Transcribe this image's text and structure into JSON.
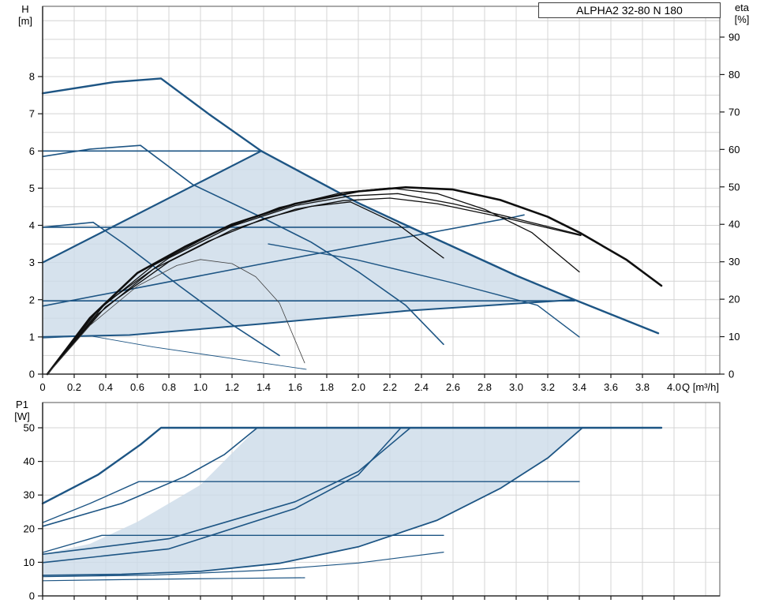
{
  "title_box": {
    "label": "ALPHA2 32-80 N 180"
  },
  "labels": {
    "head_1": "H",
    "head_2": "[m]",
    "eta_1": "eta",
    "eta_2": "[%]",
    "power_1": "P1",
    "power_2": "[W]",
    "flow_unit": "Q [m³/h]"
  },
  "colors": {
    "curve_blue": "#1d5584",
    "region_fill": "#ccdbe9",
    "eta_black": "#0f0f0f",
    "eta_faint": "#3f3f3f",
    "grid": "#d4d4d4",
    "frame": "#7d7d7d",
    "axis": "#1a1a1a"
  },
  "chart_data": [
    {
      "type": "line",
      "title": "ALPHA2 32-80 N 180",
      "xlabel": "Q [m³/h]",
      "ylabel_left": "H [m]",
      "ylabel_right": "eta [%]",
      "xlim": [
        0,
        4.3
      ],
      "ylim_left": [
        0,
        9.9
      ],
      "ylim_right": [
        0,
        94
      ],
      "grid": true,
      "x_ticks": [
        "0",
        "0.2",
        "0.4",
        "0.6",
        "0.8",
        "1.0",
        "1.2",
        "1.4",
        "1.6",
        "1.8",
        "2.0",
        "2.2",
        "2.4",
        "2.6",
        "2.8",
        "3.0",
        "3.2",
        "3.4",
        "3.6",
        "3.8",
        "4.0"
      ],
      "y_ticks_left": [
        "0",
        "1",
        "2",
        "3",
        "4",
        "5",
        "6",
        "7",
        "8"
      ],
      "y_ticks_right": [
        "0",
        "10",
        "20",
        "30",
        "40",
        "50",
        "60",
        "70",
        "80",
        "90"
      ],
      "region": [
        [
          0,
          3.0
        ],
        [
          1.385,
          6.0
        ],
        [
          2.0,
          4.6
        ],
        [
          2.33,
          3.95
        ],
        [
          3.0,
          2.65
        ],
        [
          3.37,
          2.0
        ],
        [
          2.3,
          1.7
        ],
        [
          1.385,
          1.35
        ],
        [
          0.55,
          1.05
        ],
        [
          0,
          1.0
        ]
      ],
      "series": [
        {
          "name": "max-speed-curve",
          "axis": "H",
          "color": "curve_blue",
          "width": 2.4,
          "points": [
            [
              0,
              7.55
            ],
            [
              0.45,
              7.85
            ],
            [
              0.75,
              7.95
            ],
            [
              1.05,
              7.0
            ],
            [
              1.385,
              6.0
            ],
            [
              2.0,
              4.6
            ],
            [
              2.33,
              3.95
            ],
            [
              3.0,
              2.65
            ],
            [
              3.37,
              2.0
            ],
            [
              3.9,
              1.1
            ]
          ]
        },
        {
          "name": "speed-2-curve",
          "axis": "H",
          "color": "curve_blue",
          "width": 1.6,
          "points": [
            [
              0,
              5.85
            ],
            [
              0.3,
              6.05
            ],
            [
              0.62,
              6.15
            ],
            [
              0.95,
              5.1
            ],
            [
              1.385,
              4.22
            ],
            [
              1.7,
              3.55
            ],
            [
              2.0,
              2.75
            ],
            [
              2.3,
              1.85
            ],
            [
              2.54,
              0.8
            ]
          ]
        },
        {
          "name": "speed-1-curve",
          "axis": "H",
          "color": "curve_blue",
          "width": 1.6,
          "points": [
            [
              0,
              3.95
            ],
            [
              0.32,
              4.08
            ],
            [
              0.52,
              3.49
            ],
            [
              0.87,
              2.36
            ],
            [
              1.2,
              1.33
            ],
            [
              1.5,
              0.5
            ]
          ]
        },
        {
          "name": "min-speed-curve",
          "axis": "H",
          "color": "curve_blue",
          "width": 0.9,
          "points": [
            [
              0,
              0.97
            ],
            [
              0.3,
              1.03
            ],
            [
              0.7,
              0.73
            ],
            [
              1.2,
              0.42
            ],
            [
              1.67,
              0.13
            ]
          ]
        },
        {
          "name": "const-pressure-6m",
          "axis": "H",
          "color": "curve_blue",
          "width": 1.6,
          "points": [
            [
              0,
              6.0
            ],
            [
              1.39,
              6.0
            ]
          ]
        },
        {
          "name": "const-pressure-4m",
          "axis": "H",
          "color": "curve_blue",
          "width": 1.6,
          "points": [
            [
              0,
              3.95
            ],
            [
              2.33,
              3.95
            ]
          ]
        },
        {
          "name": "const-pressure-2m",
          "axis": "H",
          "color": "curve_blue",
          "width": 1.6,
          "points": [
            [
              0,
              1.97
            ],
            [
              3.37,
              1.97
            ]
          ]
        },
        {
          "name": "prop-pressure-upper-limit",
          "axis": "H",
          "color": "curve_blue",
          "width": 2.2,
          "points": [
            [
              0,
              3.0
            ],
            [
              1.385,
              6.0
            ]
          ]
        },
        {
          "name": "prop-pressure-rising-curve",
          "axis": "H",
          "color": "curve_blue",
          "width": 1.6,
          "points": [
            [
              0,
              1.83
            ],
            [
              1.385,
              2.96
            ],
            [
              2.985,
              4.22
            ],
            [
              3.05,
              4.28
            ]
          ]
        },
        {
          "name": "operating-range-lower-limit",
          "axis": "H",
          "color": "curve_blue",
          "width": 2.0,
          "points": [
            [
              0,
              1.0
            ],
            [
              0.55,
              1.05
            ],
            [
              1.385,
              1.35
            ],
            [
              2.3,
              1.7
            ],
            [
              3.37,
              2.0
            ]
          ]
        },
        {
          "name": "prop-pressure-descending-curve",
          "axis": "H",
          "color": "curve_blue",
          "width": 1.4,
          "points": [
            [
              1.43,
              3.5
            ],
            [
              1.985,
              3.08
            ],
            [
              2.6,
              2.45
            ],
            [
              3.135,
              1.85
            ],
            [
              3.4,
              1.0
            ]
          ]
        },
        {
          "name": "eta-max-curve",
          "axis": "eta",
          "color": "eta_black",
          "width": 2.6,
          "points": [
            [
              0.03,
              0
            ],
            [
              0.3,
              15
            ],
            [
              0.6,
              27
            ],
            [
              0.9,
              34
            ],
            [
              1.2,
              40
            ],
            [
              1.6,
              45.5
            ],
            [
              2.0,
              48.8
            ],
            [
              2.3,
              49.9
            ],
            [
              2.6,
              49.3
            ],
            [
              2.9,
              46.5
            ],
            [
              3.2,
              42
            ],
            [
              3.41,
              37.6
            ],
            [
              3.7,
              30.5
            ],
            [
              3.92,
              23.6
            ]
          ]
        },
        {
          "name": "eta-curve-2",
          "axis": "eta",
          "color": "eta_black",
          "width": 1.3,
          "points": [
            [
              0.03,
              0
            ],
            [
              0.35,
              17
            ],
            [
              0.7,
              29
            ],
            [
              1.1,
              38
            ],
            [
              1.5,
              44.5
            ],
            [
              1.9,
              48.5
            ],
            [
              2.2,
              49.7
            ],
            [
              2.5,
              48.2
            ],
            [
              2.8,
              44
            ],
            [
              3.1,
              37.8
            ],
            [
              3.4,
              27.3
            ]
          ]
        },
        {
          "name": "eta-curve-3",
          "axis": "eta",
          "color": "eta_black",
          "width": 1.3,
          "points": [
            [
              0.03,
              0
            ],
            [
              0.4,
              19
            ],
            [
              0.8,
              31
            ],
            [
              1.2,
              39.5
            ],
            [
              1.6,
              45
            ],
            [
              1.95,
              47.6
            ],
            [
              2.25,
              48.2
            ],
            [
              2.6,
              45.5
            ],
            [
              3.0,
              41.5
            ],
            [
              3.41,
              37.2
            ]
          ]
        },
        {
          "name": "eta-curve-4",
          "axis": "eta",
          "color": "eta_black",
          "width": 1.3,
          "points": [
            [
              0.03,
              0
            ],
            [
              0.4,
              18
            ],
            [
              0.8,
              30
            ],
            [
              1.2,
              38.5
            ],
            [
              1.6,
              44
            ],
            [
              1.9,
              46.3
            ],
            [
              2.2,
              47
            ],
            [
              2.5,
              45.5
            ],
            [
              2.9,
              42
            ],
            [
              3.41,
              37.0
            ]
          ]
        },
        {
          "name": "eta-curve-5",
          "axis": "eta",
          "color": "eta_black",
          "width": 1.3,
          "points": [
            [
              0.03,
              0
            ],
            [
              0.35,
              16
            ],
            [
              0.7,
              28
            ],
            [
              1.05,
              35.5
            ],
            [
              1.4,
              41.5
            ],
            [
              1.7,
              44.8
            ],
            [
              1.95,
              46
            ],
            [
              2.25,
              40
            ],
            [
              2.54,
              31
            ]
          ]
        },
        {
          "name": "eta-min-curve",
          "axis": "eta",
          "color": "eta_faint",
          "width": 0.8,
          "points": [
            [
              0.03,
              0
            ],
            [
              0.3,
              13
            ],
            [
              0.6,
              23.5
            ],
            [
              0.85,
              29
            ],
            [
              1.0,
              30.6
            ],
            [
              1.2,
              29.5
            ],
            [
              1.35,
              26
            ],
            [
              1.5,
              19
            ],
            [
              1.66,
              3
            ]
          ]
        }
      ]
    },
    {
      "type": "line",
      "title": "P1 power curves",
      "xlabel": "Q [m³/h]",
      "ylabel_left": "P1 [W]",
      "xlim": [
        0,
        4.3
      ],
      "ylim_left": [
        0,
        57.5
      ],
      "grid": true,
      "y_ticks_left": [
        "0",
        "10",
        "20",
        "30",
        "40",
        "50"
      ],
      "region": [
        [
          0,
          6.1
        ],
        [
          0.5,
          6.4
        ],
        [
          1.0,
          7.3
        ],
        [
          1.5,
          9.7
        ],
        [
          2.0,
          14.6
        ],
        [
          2.5,
          22.5
        ],
        [
          2.9,
          32
        ],
        [
          3.2,
          41
        ],
        [
          3.42,
          50
        ],
        [
          1.36,
          50
        ],
        [
          1.0,
          33
        ],
        [
          0.6,
          22
        ],
        [
          0.3,
          15.5
        ],
        [
          0,
          12.4
        ]
      ],
      "series": [
        {
          "name": "p1-max-curve",
          "axis": "P",
          "color": "curve_blue",
          "width": 2.4,
          "points": [
            [
              0,
              27.5
            ],
            [
              0.35,
              36
            ],
            [
              0.62,
              45
            ],
            [
              0.75,
              50
            ],
            [
              3.92,
              50
            ]
          ]
        },
        {
          "name": "p1-const-34w-curve",
          "axis": "P",
          "color": "curve_blue",
          "width": 1.4,
          "points": [
            [
              0,
              21.8
            ],
            [
              0.3,
              27.5
            ],
            [
              0.61,
              34
            ],
            [
              3.4,
              34
            ]
          ]
        },
        {
          "name": "p1-speed-2-curve",
          "axis": "P",
          "color": "curve_blue",
          "width": 1.6,
          "points": [
            [
              0,
              20.7
            ],
            [
              0.5,
              27.5
            ],
            [
              0.9,
              35.5
            ],
            [
              1.15,
              42
            ],
            [
              1.36,
              50
            ]
          ]
        },
        {
          "name": "p1-const-18w-curve",
          "axis": "P",
          "color": "curve_blue",
          "width": 1.4,
          "points": [
            [
              0,
              12.9
            ],
            [
              0.375,
              18
            ],
            [
              2.54,
              18
            ]
          ]
        },
        {
          "name": "p1-mid-curve-1",
          "axis": "P",
          "color": "curve_blue",
          "width": 1.6,
          "points": [
            [
              0,
              12.4
            ],
            [
              0.8,
              17
            ],
            [
              1.6,
              28
            ],
            [
              2.0,
              37
            ],
            [
              2.33,
              50
            ]
          ]
        },
        {
          "name": "p1-mid-curve-2",
          "axis": "P",
          "color": "curve_blue",
          "width": 1.6,
          "points": [
            [
              0,
              9.9
            ],
            [
              0.8,
              14
            ],
            [
              1.6,
              26
            ],
            [
              2.0,
              36
            ],
            [
              2.27,
              50
            ]
          ]
        },
        {
          "name": "p1-low-curve",
          "axis": "P",
          "color": "curve_blue",
          "width": 1.2,
          "points": [
            [
              0,
              5.7
            ],
            [
              0.7,
              6.2
            ],
            [
              1.4,
              7.6
            ],
            [
              2.0,
              9.8
            ],
            [
              2.54,
              13
            ]
          ]
        },
        {
          "name": "p1-lower-limit-curve",
          "axis": "P",
          "color": "curve_blue",
          "width": 1.8,
          "points": [
            [
              0,
              6.1
            ],
            [
              0.5,
              6.4
            ],
            [
              1.0,
              7.3
            ],
            [
              1.5,
              9.7
            ],
            [
              2.0,
              14.6
            ],
            [
              2.5,
              22.5
            ],
            [
              2.9,
              32
            ],
            [
              3.2,
              41
            ],
            [
              3.42,
              50
            ]
          ]
        },
        {
          "name": "p1-min-speed-curve",
          "axis": "P",
          "color": "curve_blue",
          "width": 1.2,
          "points": [
            [
              0,
              4.5
            ],
            [
              0.6,
              4.9
            ],
            [
              1.2,
              5.2
            ],
            [
              1.66,
              5.4
            ]
          ]
        }
      ]
    }
  ]
}
